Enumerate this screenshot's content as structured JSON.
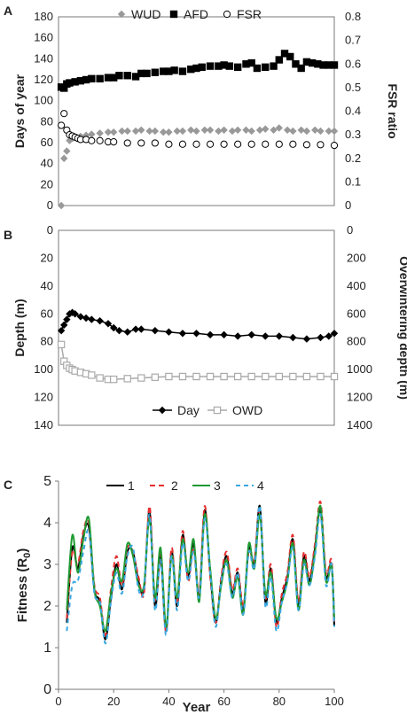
{
  "chart_data": [
    {
      "panel": "A",
      "type": "scatter",
      "ylabel": "Days of year",
      "y2label": "FSR ratio",
      "ylim": [
        0,
        180
      ],
      "y2lim": [
        0,
        0.8
      ],
      "xlim": [
        0,
        100
      ],
      "yticks": [
        "0",
        "20",
        "40",
        "60",
        "80",
        "100",
        "120",
        "140",
        "160",
        "180"
      ],
      "y2ticks": [
        "0",
        "0.1",
        "0.2",
        "0.3",
        "0.4",
        "0.5",
        "0.6",
        "0.7",
        "0.8"
      ],
      "legend_position": "top",
      "series": [
        {
          "name": "WUD",
          "axis": "left",
          "marker": "diamond",
          "color": "#999999",
          "x": [
            1,
            2,
            3,
            4,
            5,
            6,
            8,
            10,
            12,
            15,
            18,
            20,
            23,
            25,
            28,
            30,
            33,
            35,
            38,
            40,
            43,
            45,
            48,
            50,
            53,
            55,
            58,
            60,
            63,
            65,
            68,
            70,
            73,
            75,
            78,
            80,
            83,
            85,
            88,
            90,
            93,
            95,
            98,
            100
          ],
          "y": [
            0,
            45,
            52,
            62,
            64,
            65,
            66,
            67,
            68,
            69,
            70,
            70,
            71,
            71,
            71,
            72,
            71,
            71,
            70,
            70,
            71,
            71,
            72,
            71,
            72,
            72,
            71,
            72,
            71,
            72,
            72,
            71,
            72,
            73,
            72,
            74,
            72,
            71,
            72,
            71,
            72,
            71,
            71,
            71
          ]
        },
        {
          "name": "AFD",
          "axis": "left",
          "marker": "square",
          "color": "#000000",
          "x": [
            1,
            2,
            3,
            4,
            6,
            8,
            10,
            12,
            15,
            18,
            20,
            22,
            25,
            28,
            30,
            32,
            35,
            38,
            40,
            42,
            45,
            48,
            50,
            52,
            55,
            58,
            60,
            62,
            65,
            68,
            70,
            72,
            75,
            78,
            80,
            82,
            84,
            86,
            88,
            90,
            92,
            94,
            96,
            98,
            100
          ],
          "y": [
            113,
            112,
            116,
            117,
            118,
            119,
            120,
            121,
            121,
            122,
            122,
            124,
            124,
            123,
            126,
            126,
            127,
            128,
            128,
            129,
            128,
            130,
            131,
            132,
            133,
            133,
            134,
            133,
            132,
            135,
            136,
            131,
            132,
            133,
            139,
            145,
            142,
            135,
            131,
            137,
            136,
            135,
            134,
            134,
            134
          ]
        },
        {
          "name": "FSR",
          "axis": "right",
          "marker": "circle",
          "color": "#000000",
          "x": [
            1,
            2,
            3,
            4,
            5,
            6,
            7,
            8,
            10,
            12,
            15,
            18,
            20,
            25,
            30,
            35,
            40,
            45,
            50,
            55,
            60,
            65,
            70,
            75,
            80,
            85,
            90,
            95,
            100
          ],
          "y": [
            0.34,
            0.39,
            0.32,
            0.3,
            0.295,
            0.29,
            0.285,
            0.28,
            0.28,
            0.275,
            0.275,
            0.27,
            0.27,
            0.265,
            0.265,
            0.265,
            0.26,
            0.26,
            0.26,
            0.26,
            0.26,
            0.26,
            0.26,
            0.26,
            0.26,
            0.26,
            0.258,
            0.258,
            0.255
          ]
        }
      ]
    },
    {
      "panel": "B",
      "type": "line",
      "ylabel": "Depth (m)",
      "y2label": "Overwintering depth (m)",
      "ylim": [
        0,
        140
      ],
      "y2lim": [
        0,
        1400
      ],
      "y_inverted": true,
      "xlim": [
        0,
        100
      ],
      "yticks": [
        "0",
        "20",
        "40",
        "60",
        "80",
        "100",
        "120",
        "140"
      ],
      "y2ticks": [
        "0",
        "200",
        "400",
        "600",
        "800",
        "1000",
        "1200",
        "1400"
      ],
      "legend_position": "bottom",
      "series": [
        {
          "name": "Day",
          "axis": "left",
          "marker": "diamond",
          "color": "#000000",
          "x": [
            1,
            2,
            3,
            4,
            5,
            6,
            8,
            10,
            12,
            15,
            18,
            20,
            22,
            25,
            28,
            30,
            35,
            40,
            45,
            50,
            55,
            60,
            65,
            70,
            75,
            80,
            85,
            90,
            95,
            98,
            100
          ],
          "y": [
            72,
            68,
            64,
            60,
            59,
            60,
            62,
            63,
            64,
            65,
            67,
            70,
            72,
            73,
            71,
            71,
            72,
            73,
            74,
            74,
            75,
            75,
            76,
            75,
            76,
            76,
            77,
            78,
            77,
            76,
            74
          ]
        },
        {
          "name": "OWD",
          "axis": "right",
          "marker": "square-open",
          "color": "#aaaaaa",
          "x": [
            1,
            2,
            3,
            4,
            5,
            6,
            8,
            10,
            12,
            15,
            18,
            20,
            25,
            30,
            35,
            40,
            45,
            50,
            55,
            60,
            65,
            70,
            75,
            80,
            85,
            90,
            95,
            100
          ],
          "y": [
            820,
            940,
            970,
            990,
            1000,
            1010,
            1020,
            1030,
            1040,
            1060,
            1070,
            1070,
            1065,
            1060,
            1055,
            1050,
            1050,
            1050,
            1050,
            1050,
            1050,
            1050,
            1050,
            1050,
            1050,
            1050,
            1050,
            1050
          ]
        }
      ]
    },
    {
      "panel": "C",
      "type": "line",
      "xlabel": "Year",
      "ylabel": "Fitness (R",
      "ylabel_subscript": "0",
      "ylabel_suffix": ")",
      "ylim": [
        0,
        5
      ],
      "xlim": [
        0,
        100
      ],
      "yticks": [
        "0",
        "1",
        "2",
        "3",
        "4",
        "5"
      ],
      "xticks": [
        "0",
        "20",
        "40",
        "60",
        "80",
        "100"
      ],
      "legend_position": "top",
      "x": [
        3,
        5,
        7,
        9,
        11,
        13,
        15,
        17,
        19,
        21,
        23,
        25,
        27,
        29,
        31,
        33,
        35,
        37,
        39,
        41,
        43,
        45,
        47,
        49,
        51,
        53,
        55,
        57,
        59,
        61,
        63,
        65,
        67,
        69,
        71,
        73,
        75,
        77,
        79,
        81,
        83,
        85,
        87,
        89,
        91,
        93,
        95,
        97,
        99,
        100
      ],
      "series": [
        {
          "name": "1",
          "color": "#000000",
          "dash": "solid",
          "y": [
            1.6,
            3.4,
            2.9,
            3.7,
            3.9,
            2.4,
            2.1,
            1.2,
            2.2,
            3.0,
            2.4,
            3.3,
            3.3,
            2.6,
            2.4,
            4.3,
            2.0,
            3.2,
            1.4,
            3.3,
            2.0,
            3.7,
            2.7,
            3.5,
            2.2,
            4.3,
            2.8,
            1.6,
            2.6,
            3.2,
            2.3,
            2.8,
            1.9,
            3.4,
            3.0,
            4.4,
            2.1,
            2.9,
            1.6,
            2.2,
            2.7,
            3.6,
            2.0,
            3.2,
            2.6,
            3.4,
            4.3,
            2.7,
            3.0,
            1.5
          ]
        },
        {
          "name": "2",
          "color": "#e53030",
          "dash": "6,4",
          "y": [
            1.7,
            3.3,
            3.0,
            3.8,
            4.0,
            2.5,
            2.2,
            1.3,
            2.4,
            3.2,
            2.5,
            3.4,
            3.3,
            2.7,
            2.3,
            4.4,
            2.1,
            3.3,
            1.4,
            3.4,
            2.1,
            3.8,
            2.6,
            3.4,
            2.3,
            4.4,
            2.7,
            1.6,
            2.7,
            3.3,
            2.4,
            2.9,
            2.0,
            3.3,
            3.1,
            4.3,
            2.2,
            3.0,
            1.5,
            2.3,
            2.8,
            3.7,
            2.1,
            3.3,
            2.7,
            3.5,
            4.5,
            2.8,
            3.1,
            1.6
          ]
        },
        {
          "name": "3",
          "color": "#1e9a32",
          "dash": "solid",
          "y": [
            1.9,
            3.7,
            2.8,
            3.6,
            4.1,
            2.4,
            2.0,
            1.4,
            2.3,
            2.9,
            2.6,
            3.5,
            3.2,
            2.5,
            2.5,
            4.1,
            2.2,
            3.4,
            1.5,
            3.2,
            2.2,
            3.6,
            2.8,
            3.6,
            2.1,
            4.2,
            2.9,
            1.7,
            2.5,
            3.1,
            2.2,
            2.7,
            1.8,
            3.5,
            2.9,
            4.2,
            2.3,
            2.8,
            1.7,
            2.1,
            2.6,
            3.5,
            1.9,
            3.1,
            2.5,
            3.3,
            4.4,
            2.6,
            3.0,
            1.7
          ]
        },
        {
          "name": "4",
          "color": "#3aa8e0",
          "dash": "5,4",
          "y": [
            1.4,
            2.5,
            2.6,
            3.3,
            3.8,
            2.3,
            2.1,
            1.1,
            2.1,
            2.8,
            2.3,
            3.2,
            3.4,
            2.4,
            2.4,
            4.2,
            1.9,
            3.1,
            1.3,
            3.2,
            1.9,
            3.5,
            2.6,
            3.3,
            2.2,
            4.1,
            2.8,
            1.5,
            2.6,
            3.0,
            2.2,
            2.8,
            1.8,
            3.3,
            2.9,
            4.4,
            2.0,
            2.7,
            1.4,
            2.1,
            2.6,
            3.4,
            1.9,
            3.0,
            2.5,
            3.2,
            4.2,
            2.5,
            3.0,
            1.5
          ]
        }
      ]
    }
  ]
}
